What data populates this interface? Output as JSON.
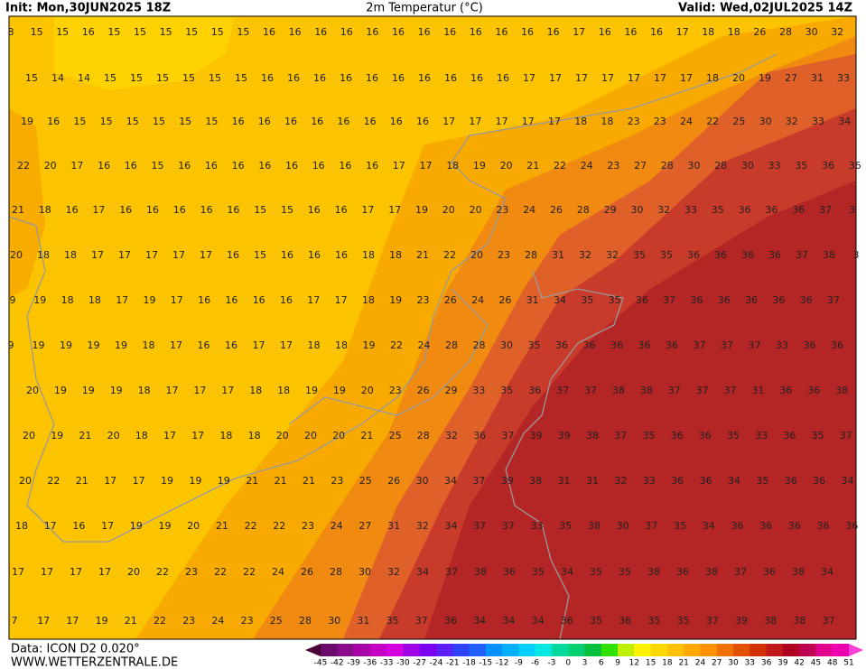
{
  "header": {
    "init": "Init: Mon,30JUN2025 18Z",
    "title": "2m Temperatur (°C)",
    "valid": "Valid: Wed,02JUL2025 14Z"
  },
  "map": {
    "rows": [
      [
        8,
        15,
        15,
        16,
        15,
        15,
        15,
        15,
        15,
        15,
        16,
        16,
        16,
        16,
        16,
        16,
        16,
        16,
        16,
        16,
        16,
        16,
        17,
        16,
        16,
        16,
        17,
        18,
        18,
        26,
        28,
        30,
        32
      ],
      [
        15,
        14,
        14,
        15,
        15,
        15,
        15,
        15,
        15,
        16,
        16,
        16,
        16,
        16,
        16,
        16,
        16,
        16,
        16,
        17,
        17,
        17,
        17,
        17,
        17,
        17,
        18,
        20,
        19,
        27,
        31,
        33
      ],
      [
        19,
        16,
        15,
        15,
        15,
        15,
        15,
        15,
        16,
        16,
        16,
        16,
        16,
        16,
        16,
        16,
        17,
        17,
        17,
        17,
        17,
        18,
        18,
        23,
        23,
        24,
        22,
        25,
        30,
        32,
        33,
        34
      ],
      [
        22,
        20,
        17,
        16,
        16,
        15,
        16,
        16,
        16,
        16,
        16,
        16,
        16,
        16,
        17,
        17,
        18,
        19,
        20,
        21,
        22,
        24,
        23,
        27,
        28,
        30,
        28,
        30,
        33,
        35,
        36,
        36
      ],
      [
        21,
        18,
        16,
        17,
        16,
        16,
        16,
        16,
        16,
        15,
        15,
        16,
        16,
        17,
        17,
        19,
        20,
        20,
        23,
        24,
        26,
        28,
        29,
        30,
        32,
        33,
        35,
        36,
        36,
        36,
        37,
        3
      ],
      [
        20,
        18,
        18,
        17,
        17,
        17,
        17,
        17,
        16,
        15,
        16,
        16,
        16,
        18,
        18,
        21,
        22,
        20,
        23,
        28,
        31,
        32,
        32,
        35,
        35,
        36,
        36,
        36,
        36,
        37,
        38,
        3
      ],
      [
        9,
        19,
        18,
        18,
        17,
        19,
        17,
        16,
        16,
        16,
        16,
        17,
        17,
        18,
        19,
        23,
        26,
        24,
        26,
        31,
        34,
        35,
        35,
        36,
        37,
        36,
        36,
        36,
        36,
        36,
        37
      ],
      [
        9,
        19,
        19,
        19,
        19,
        18,
        17,
        16,
        16,
        17,
        17,
        18,
        18,
        19,
        22,
        24,
        28,
        28,
        30,
        35,
        36,
        36,
        36,
        36,
        36,
        37,
        37,
        37,
        33,
        36,
        36
      ],
      [
        20,
        19,
        19,
        19,
        18,
        17,
        17,
        17,
        18,
        18,
        19,
        19,
        20,
        23,
        26,
        29,
        33,
        35,
        36,
        37,
        37,
        38,
        38,
        37,
        37,
        37,
        31,
        36,
        36,
        38
      ],
      [
        20,
        19,
        21,
        20,
        18,
        17,
        17,
        18,
        18,
        20,
        20,
        20,
        21,
        25,
        28,
        32,
        36,
        37,
        39,
        39,
        38,
        37,
        35,
        36,
        36,
        35,
        33,
        36,
        35,
        37
      ],
      [
        20,
        22,
        21,
        17,
        17,
        19,
        19,
        19,
        21,
        21,
        21,
        23,
        25,
        26,
        30,
        34,
        37,
        39,
        38,
        31,
        31,
        32,
        33,
        36,
        36,
        34,
        35,
        36,
        36,
        34
      ],
      [
        18,
        17,
        16,
        17,
        19,
        19,
        20,
        21,
        22,
        22,
        23,
        24,
        27,
        31,
        32,
        34,
        37,
        37,
        33,
        35,
        38,
        30,
        37,
        35,
        34,
        36,
        36,
        36,
        36,
        36
      ],
      [
        17,
        17,
        17,
        17,
        20,
        22,
        23,
        22,
        22,
        24,
        26,
        28,
        30,
        32,
        34,
        37,
        38,
        36,
        35,
        34,
        35,
        35,
        38,
        36,
        38,
        37,
        36,
        38,
        34
      ],
      [
        7,
        17,
        17,
        19,
        21,
        22,
        23,
        24,
        23,
        25,
        28,
        30,
        31,
        35,
        37,
        36,
        34,
        34,
        34,
        36,
        35,
        36,
        35,
        35,
        37,
        39,
        38,
        38,
        37
      ]
    ]
  },
  "colorbar": {
    "ticks": [
      -45,
      -42,
      -39,
      -36,
      -33,
      -30,
      -27,
      -24,
      -21,
      -18,
      -15,
      -12,
      -9,
      -6,
      -3,
      0,
      3,
      6,
      9,
      12,
      15,
      18,
      21,
      24,
      27,
      30,
      33,
      36,
      39,
      42,
      45,
      48,
      51
    ],
    "colors": [
      "#4b0036",
      "#6a0a6a",
      "#8a0a8a",
      "#a800a8",
      "#c400c4",
      "#d400e0",
      "#a000e8",
      "#7a00f0",
      "#5a20f5",
      "#3040ff",
      "#2060ff",
      "#0090ff",
      "#00b0ff",
      "#00d0ff",
      "#00e8e0",
      "#00d8a0",
      "#00d070",
      "#00c040",
      "#30e000",
      "#c0f000",
      "#fff000",
      "#ffd800",
      "#ffc000",
      "#ffa800",
      "#ff9000",
      "#f07000",
      "#e05000",
      "#d03000",
      "#c01818",
      "#b00020",
      "#c00050",
      "#e00090",
      "#f000b0",
      "#ff40d0"
    ]
  },
  "footer": {
    "data": "Data: ICON D2 0.020°",
    "site": "WWW.WETTERZENTRALE.DE"
  }
}
